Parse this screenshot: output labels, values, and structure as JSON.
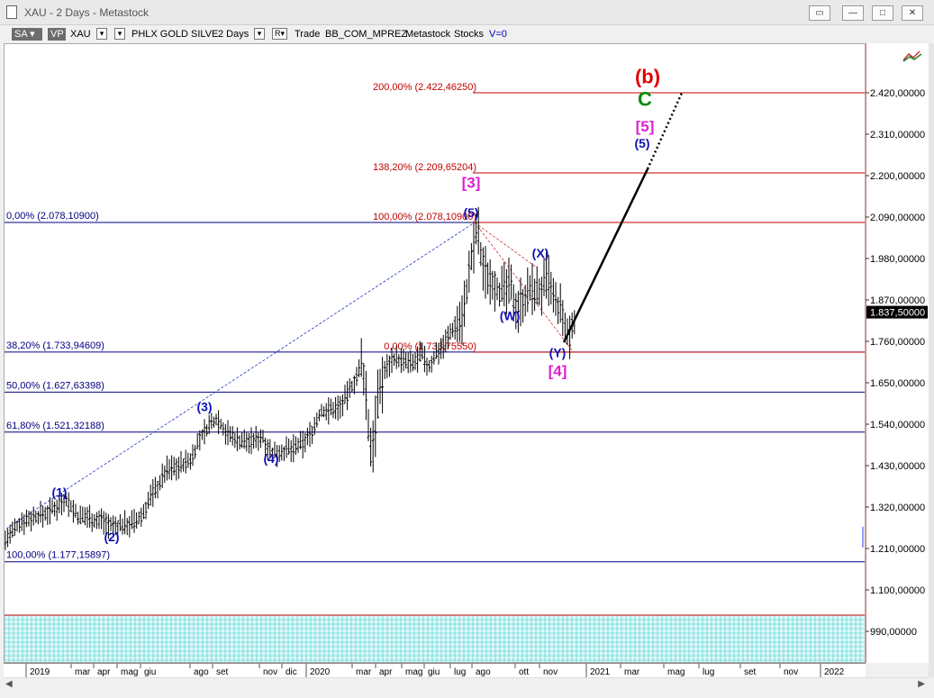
{
  "window": {
    "title": "XAU - 2 Days - Metastock"
  },
  "toolbar": {
    "sa": "SA",
    "vp": "VP",
    "symbol": "XAU",
    "security_name": "PHLX GOLD SILVE",
    "period": "2 Days",
    "r_label": "R",
    "trade": "Trade",
    "template": "BB_COM_MPREZ",
    "source": "Metastock",
    "type": "Stocks",
    "volume": "V=0"
  },
  "price_axis": {
    "ticks": [
      "2.420,00000",
      "2.310,00000",
      "2.200,00000",
      "2.090,00000",
      "1.980,00000",
      "1.870,00000",
      "1.760,00000",
      "1.650,00000",
      "1.540,00000",
      "1.430,00000",
      "1.320,00000",
      "1.210,00000",
      "1.100,00000",
      "990,00000"
    ],
    "last_price": "1.837,50000"
  },
  "time_axis": {
    "labels": [
      "2019",
      "mar",
      "apr",
      "mag",
      "giu",
      "ago",
      "set",
      "nov",
      "dic",
      "2020",
      "mar",
      "apr",
      "mag",
      "giu",
      "lug",
      "ago",
      "ott",
      "nov",
      "2021",
      "mar",
      "mag",
      "lug",
      "set",
      "nov",
      "2022"
    ]
  },
  "fib_left": [
    {
      "label": "0,00% (2.078,10900)",
      "price": 2078.109,
      "color": "#00007f"
    },
    {
      "label": "38,20% (1.733,94609)",
      "price": 1733.946,
      "color": "#00007f"
    },
    {
      "label": "50,00% (1.627,63398)",
      "price": 1627.634,
      "color": "#00007f"
    },
    {
      "label": "61,80% (1.521,32188)",
      "price": 1521.322,
      "color": "#00007f"
    },
    {
      "label": "100,00% (1.177,15897)",
      "price": 1177.159,
      "color": "#00007f"
    }
  ],
  "fib_right": [
    {
      "label": "200,00% (2.422,46250)",
      "price": 2422.4625,
      "color": "#c00000"
    },
    {
      "label": "138,20% (2.209,65204)",
      "price": 2209.652,
      "color": "#c00000"
    },
    {
      "label": "100,00% (2.078,10900)",
      "price": 2078.109,
      "color": "#c00000"
    },
    {
      "label": "0,00% (1.733,75550)",
      "price": 1733.7555,
      "color": "#c00000"
    }
  ],
  "wave_labels": [
    {
      "text": "(1)",
      "color": "#1010b0"
    },
    {
      "text": "(2)",
      "color": "#1010b0"
    },
    {
      "text": "(3)",
      "color": "#1010b0"
    },
    {
      "text": "(4)",
      "color": "#1010b0"
    },
    {
      "text": "[3]",
      "color": "#e020d0"
    },
    {
      "text": "(5)",
      "color": "#1010b0"
    },
    {
      "text": "(X)",
      "color": "#1010b0"
    },
    {
      "text": "(W)",
      "color": "#1010b0"
    },
    {
      "text": "(Y)",
      "color": "#1010b0"
    },
    {
      "text": "[4]",
      "color": "#e020d0"
    },
    {
      "text": "(b)",
      "color": "#e00000"
    },
    {
      "text": "C",
      "color": "#0a8a0a"
    },
    {
      "text": "[5]",
      "color": "#e020d0"
    },
    {
      "text": "(5)",
      "color": "#1010b0"
    }
  ],
  "chart_data": {
    "type": "ohlc",
    "series_path": [
      [
        0,
        1235
      ],
      [
        8,
        1255
      ],
      [
        18,
        1285
      ],
      [
        30,
        1295
      ],
      [
        45,
        1305
      ],
      [
        58,
        1325
      ],
      [
        66,
        1345
      ],
      [
        74,
        1320
      ],
      [
        82,
        1292
      ],
      [
        92,
        1300
      ],
      [
        100,
        1285
      ],
      [
        108,
        1290
      ],
      [
        118,
        1270
      ],
      [
        130,
        1275
      ],
      [
        145,
        1282
      ],
      [
        152,
        1300
      ],
      [
        162,
        1355
      ],
      [
        170,
        1380
      ],
      [
        178,
        1420
      ],
      [
        190,
        1430
      ],
      [
        205,
        1445
      ],
      [
        215,
        1500
      ],
      [
        225,
        1535
      ],
      [
        235,
        1560
      ],
      [
        245,
        1520
      ],
      [
        258,
        1500
      ],
      [
        272,
        1495
      ],
      [
        285,
        1510
      ],
      [
        296,
        1465
      ],
      [
        306,
        1470
      ],
      [
        318,
        1475
      ],
      [
        330,
        1490
      ],
      [
        340,
        1520
      ],
      [
        350,
        1575
      ],
      [
        360,
        1580
      ],
      [
        372,
        1590
      ],
      [
        380,
        1620
      ],
      [
        388,
        1660
      ],
      [
        396,
        1700
      ],
      [
        400,
        1630
      ],
      [
        405,
        1470
      ],
      [
        410,
        1530
      ],
      [
        415,
        1620
      ],
      [
        420,
        1680
      ],
      [
        430,
        1720
      ],
      [
        440,
        1710
      ],
      [
        452,
        1700
      ],
      [
        462,
        1730
      ],
      [
        470,
        1690
      ],
      [
        478,
        1730
      ],
      [
        488,
        1760
      ],
      [
        498,
        1800
      ],
      [
        508,
        1830
      ],
      [
        516,
        1960
      ],
      [
        520,
        2010
      ],
      [
        524,
        2078
      ],
      [
        528,
        1980
      ],
      [
        534,
        1940
      ],
      [
        540,
        1930
      ],
      [
        550,
        1890
      ],
      [
        560,
        1910
      ],
      [
        568,
        1850
      ],
      [
        576,
        1880
      ],
      [
        586,
        1900
      ],
      [
        594,
        1890
      ],
      [
        602,
        1930
      ],
      [
        610,
        1860
      ],
      [
        618,
        1840
      ],
      [
        622,
        1780
      ],
      [
        626,
        1770
      ],
      [
        630,
        1810
      ],
      [
        634,
        1837
      ]
    ],
    "ylim": [
      950,
      2500
    ]
  }
}
